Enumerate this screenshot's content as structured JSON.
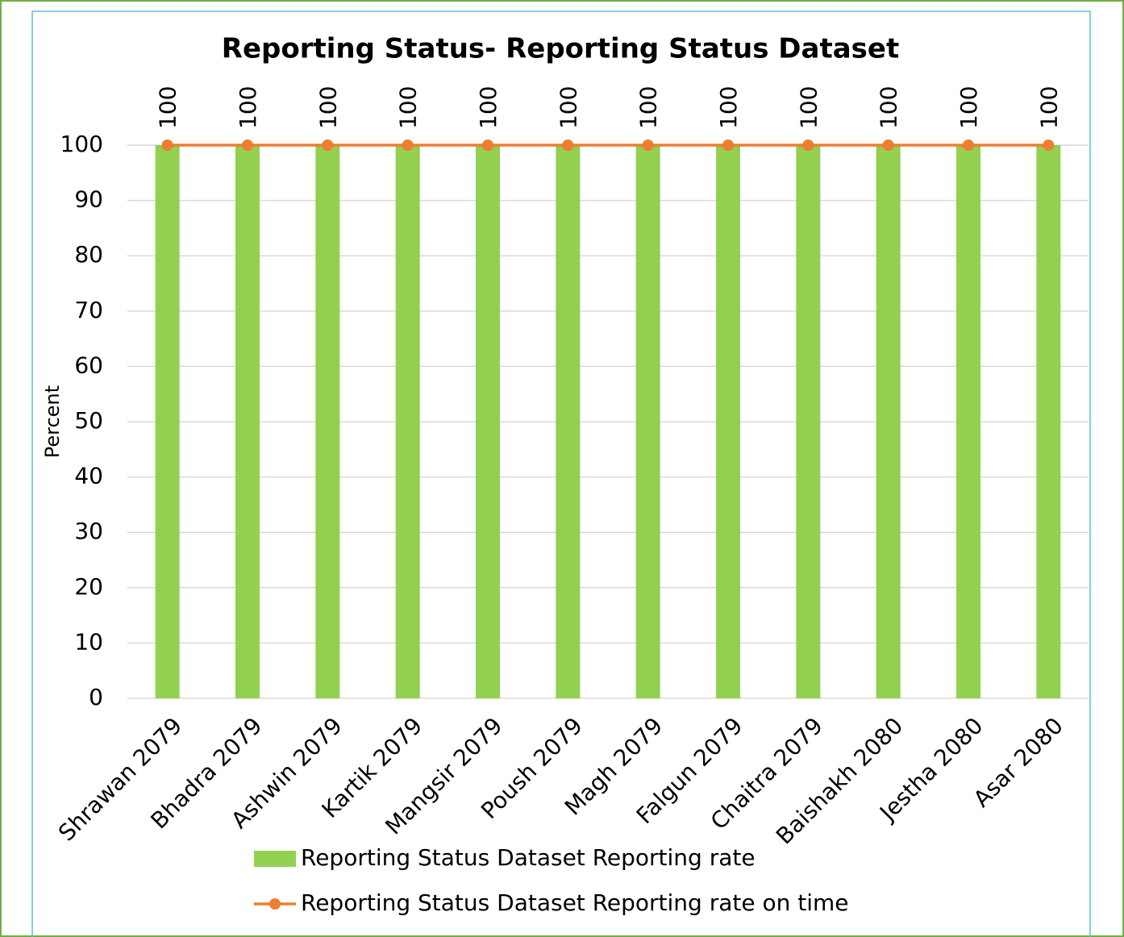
{
  "chart_data": {
    "type": "combo",
    "title": "Reporting Status- Reporting Status Dataset",
    "y_label": "Percent",
    "categories": [
      "Shrawan 2079",
      "Bhadra 2079",
      "Ashwin 2079",
      "Kartik 2079",
      "Mangsir 2079",
      "Poush 2079",
      "Magh 2079",
      "Falgun 2079",
      "Chaitra 2079",
      "Baishakh 2080",
      "Jestha 2080",
      "Asar 2080"
    ],
    "series": [
      {
        "name": "Reporting Status Dataset Reporting rate",
        "type": "bar",
        "color": "#92d050",
        "values": [
          100,
          100,
          100,
          100,
          100,
          100,
          100,
          100,
          100,
          100,
          100,
          100
        ]
      },
      {
        "name": "Reporting Status Dataset Reporting rate on time",
        "type": "line",
        "color": "#ed7d31",
        "values": [
          100,
          100,
          100,
          100,
          100,
          100,
          100,
          100,
          100,
          100,
          100,
          100
        ]
      }
    ],
    "ylim": [
      0,
      100
    ],
    "yticks": [
      0,
      10,
      20,
      30,
      40,
      50,
      60,
      70,
      80,
      90,
      100
    ],
    "grid": true,
    "legend": "bottom"
  }
}
